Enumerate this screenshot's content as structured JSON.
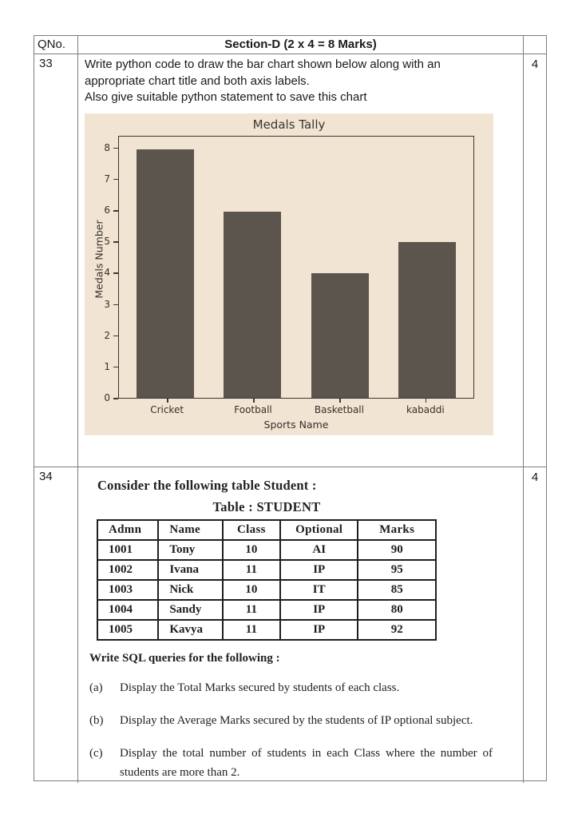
{
  "header": {
    "qno_label": "QNo.",
    "section_title": "Section-D (2 x 4 = 8 Marks)"
  },
  "q33": {
    "number": "33",
    "marks": "4",
    "text_lines": [
      "Write python code to draw the bar chart shown below along with an",
      "appropriate chart title and both axis labels.",
      "Also give suitable python statement to save this chart"
    ]
  },
  "chart_data": {
    "type": "bar",
    "title": "Medals Tally",
    "xlabel": "Sports Name",
    "ylabel": "Medals Number",
    "categories": [
      "Cricket",
      "Football",
      "Basketball",
      "kabaddi"
    ],
    "values": [
      8,
      6,
      4,
      5
    ],
    "yticks": [
      0,
      1,
      2,
      3,
      4,
      5,
      6,
      7,
      8
    ],
    "ylim": [
      0,
      8.4
    ],
    "grid": false,
    "legend": false,
    "bg_color": "#f2e4d2",
    "bar_color": "#5b554d"
  },
  "q34": {
    "number": "34",
    "marks": "4",
    "intro": "Consider the following table Student :",
    "table_title": "Table : STUDENT",
    "student_table": {
      "headers": [
        "Admn",
        "Name",
        "Class",
        "Optional",
        "Marks"
      ],
      "rows": [
        [
          "1001",
          "Tony",
          "10",
          "AI",
          "90"
        ],
        [
          "1002",
          "Ivana",
          "11",
          "IP",
          "95"
        ],
        [
          "1003",
          "Nick",
          "10",
          "IT",
          "85"
        ],
        [
          "1004",
          "Sandy",
          "11",
          "IP",
          "80"
        ],
        [
          "1005",
          "Kavya",
          "11",
          "IP",
          "92"
        ]
      ]
    },
    "sql_heading": "Write SQL queries for the following :",
    "sql_items": [
      {
        "label": "(a)",
        "text": "Display the Total Marks secured by students of each class."
      },
      {
        "label": "(b)",
        "text": "Display the Average Marks secured by the students of IP optional subject."
      },
      {
        "label": "(c)",
        "text": "Display the total number of students in each Class where the number of students are more than 2."
      }
    ]
  }
}
